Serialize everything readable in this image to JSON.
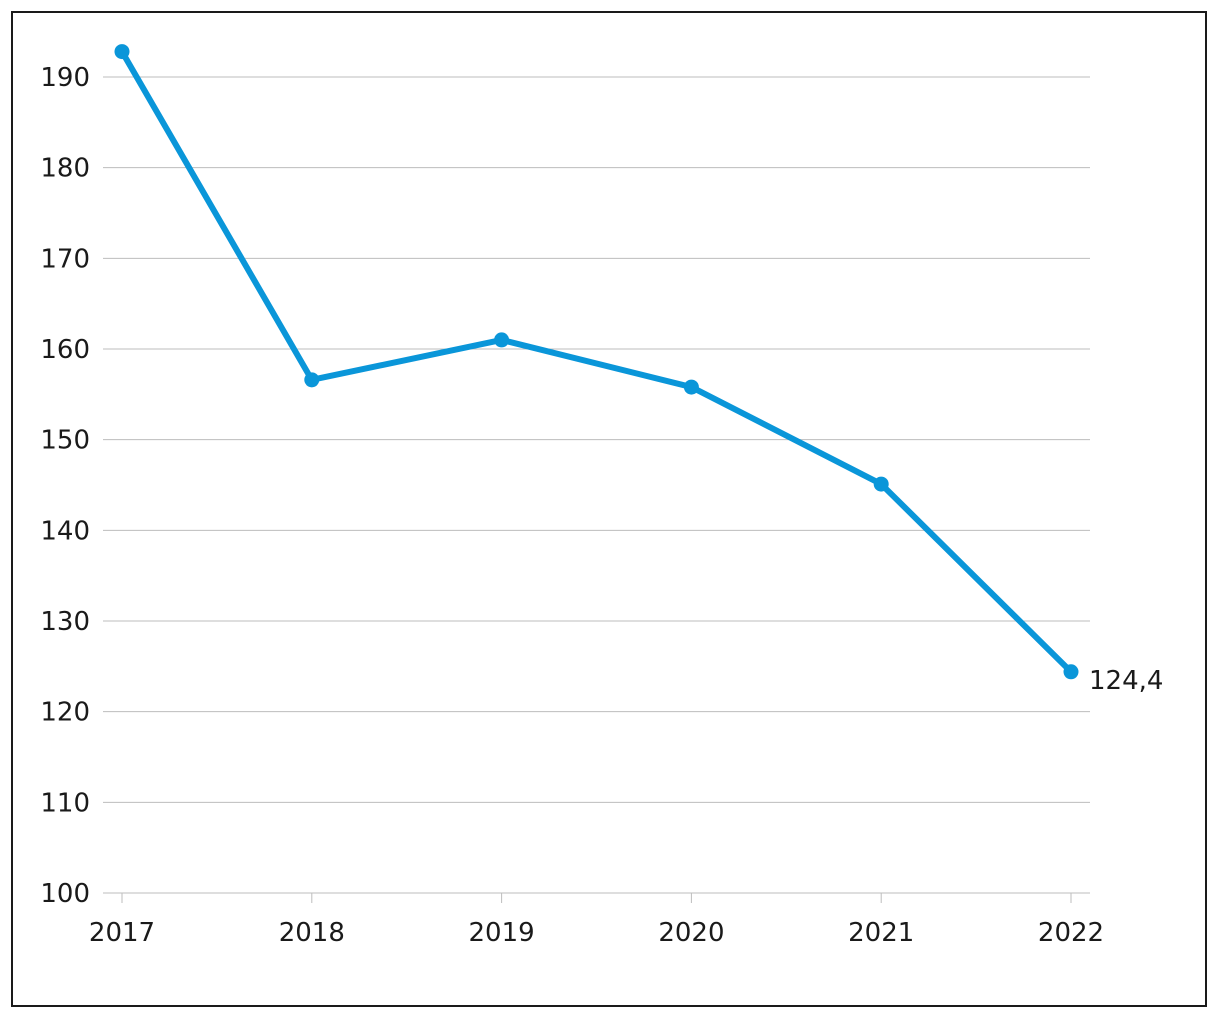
{
  "chart_data": {
    "type": "line",
    "x": [
      "2017",
      "2018",
      "2019",
      "2020",
      "2021",
      "2022"
    ],
    "series": [
      {
        "values": [
          192.8,
          156.6,
          161.0,
          155.8,
          145.1,
          124.4
        ],
        "color": "#0a96d9"
      }
    ],
    "ylim": [
      100,
      190
    ],
    "yticks": [
      "100",
      "110",
      "120",
      "130",
      "140",
      "150",
      "160",
      "170",
      "180",
      "190"
    ],
    "grid": true,
    "annotations": [
      {
        "x": "2022",
        "text": "124,4"
      }
    ]
  }
}
